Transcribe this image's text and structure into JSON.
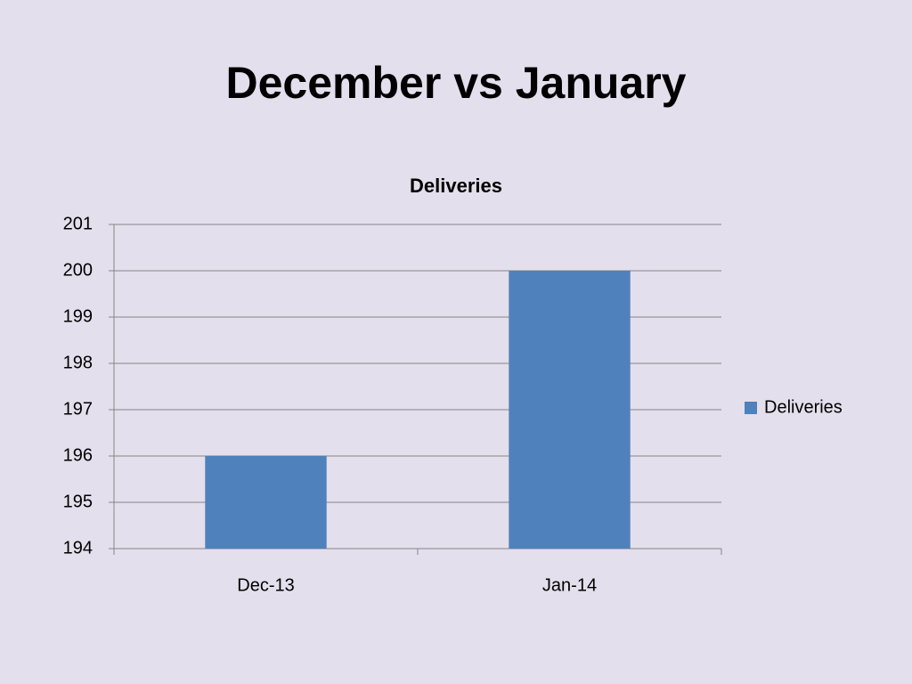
{
  "slide_title": "December vs January",
  "chart_data": {
    "type": "bar",
    "title": "Deliveries",
    "categories": [
      "Dec-13",
      "Jan-14"
    ],
    "series": [
      {
        "name": "Deliveries",
        "color": "#4f81bd",
        "values": [
          196,
          200
        ]
      }
    ],
    "ylim": [
      194,
      201
    ],
    "yticks": [
      194,
      195,
      196,
      197,
      198,
      199,
      200,
      201
    ],
    "grid": true,
    "legend": "right"
  }
}
